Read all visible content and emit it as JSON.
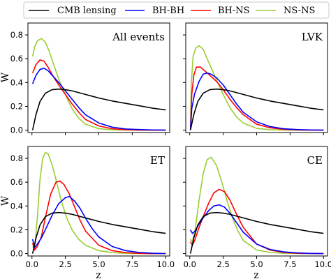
{
  "legend": {
    "entries": [
      {
        "name": "CMB lensing",
        "color": "#000000"
      },
      {
        "name": "BH-BH",
        "color": "#0000ff"
      },
      {
        "name": "BH-NS",
        "color": "#ff0000"
      },
      {
        "name": "NS-NS",
        "color": "#9acd32"
      }
    ]
  },
  "chart_data": [
    {
      "type": "line",
      "panel": "top-left",
      "title": "All events",
      "xlabel": "",
      "ylabel": "W",
      "xlim": [
        -0.3,
        10.3
      ],
      "ylim": [
        -0.02,
        0.9
      ],
      "xticks": [
        0.0,
        2.5,
        5.0,
        7.5,
        10.0
      ],
      "yticks": [
        0.0,
        0.2,
        0.4,
        0.6,
        0.8
      ],
      "show_xtick_labels": false,
      "show_yticks": true,
      "series": [
        {
          "name": "CMB lensing",
          "color": "#000000",
          "x": [
            0.05,
            0.3,
            0.6,
            1.0,
            1.5,
            2.0,
            2.5,
            3.0,
            4.0,
            5.0,
            6.0,
            7.0,
            8.0,
            9.0,
            10.0
          ],
          "y": [
            0.0,
            0.13,
            0.24,
            0.31,
            0.34,
            0.345,
            0.34,
            0.33,
            0.3,
            0.27,
            0.245,
            0.225,
            0.205,
            0.185,
            0.17
          ]
        },
        {
          "name": "BH-BH",
          "color": "#0000ff",
          "x": [
            0.05,
            0.3,
            0.6,
            0.9,
            1.2,
            1.6,
            2.0,
            2.5,
            3.0,
            3.5,
            4.0,
            5.0,
            6.0,
            7.0,
            8.0,
            9.0,
            10.0
          ],
          "y": [
            0.39,
            0.46,
            0.51,
            0.52,
            0.5,
            0.45,
            0.4,
            0.33,
            0.26,
            0.19,
            0.13,
            0.06,
            0.025,
            0.01,
            0.005,
            0.002,
            0.0
          ]
        },
        {
          "name": "BH-NS",
          "color": "#ff0000",
          "x": [
            0.05,
            0.3,
            0.6,
            0.9,
            1.2,
            1.6,
            2.0,
            2.5,
            3.0,
            3.5,
            4.0,
            5.0,
            6.0,
            7.0,
            8.0,
            9.0,
            10.0
          ],
          "y": [
            0.48,
            0.55,
            0.59,
            0.58,
            0.53,
            0.45,
            0.38,
            0.3,
            0.22,
            0.15,
            0.09,
            0.035,
            0.012,
            0.004,
            0.001,
            0.0,
            0.0
          ]
        },
        {
          "name": "NS-NS",
          "color": "#9acd32",
          "x": [
            0.05,
            0.2,
            0.4,
            0.7,
            1.0,
            1.3,
            1.6,
            2.0,
            2.5,
            3.0,
            3.5,
            4.0,
            5.0,
            6.0,
            7.0,
            8.0,
            9.0,
            10.0
          ],
          "y": [
            0.62,
            0.7,
            0.75,
            0.77,
            0.74,
            0.66,
            0.56,
            0.43,
            0.3,
            0.18,
            0.1,
            0.05,
            0.012,
            0.003,
            0.001,
            0.0,
            0.0,
            0.0
          ]
        }
      ]
    },
    {
      "type": "line",
      "panel": "top-right",
      "title": "LVK",
      "xlabel": "",
      "ylabel": "",
      "xlim": [
        -0.3,
        10.3
      ],
      "ylim": [
        -0.02,
        0.9
      ],
      "xticks": [
        0.0,
        2.5,
        5.0,
        7.5,
        10.0
      ],
      "yticks": [
        0.0,
        0.2,
        0.4,
        0.6,
        0.8
      ],
      "show_xtick_labels": false,
      "show_yticks": false,
      "series": [
        {
          "name": "CMB lensing",
          "color": "#000000",
          "x": [
            0.05,
            0.3,
            0.6,
            1.0,
            1.5,
            2.0,
            2.5,
            3.0,
            4.0,
            5.0,
            6.0,
            7.0,
            8.0,
            9.0,
            10.0
          ],
          "y": [
            0.0,
            0.13,
            0.24,
            0.31,
            0.34,
            0.345,
            0.34,
            0.33,
            0.3,
            0.27,
            0.245,
            0.225,
            0.205,
            0.185,
            0.17
          ]
        },
        {
          "name": "BH-BH",
          "color": "#0000ff",
          "x": [
            0.05,
            0.15,
            0.35,
            0.7,
            1.0,
            1.3,
            1.6,
            2.0,
            2.5,
            3.0,
            3.5,
            4.0,
            5.0,
            6.0,
            7.0,
            8.0,
            9.0,
            10.0
          ],
          "y": [
            0.0,
            0.18,
            0.3,
            0.41,
            0.47,
            0.48,
            0.47,
            0.44,
            0.38,
            0.3,
            0.22,
            0.15,
            0.07,
            0.03,
            0.012,
            0.005,
            0.002,
            0.0
          ]
        },
        {
          "name": "BH-NS",
          "color": "#ff0000",
          "x": [
            0.05,
            0.15,
            0.3,
            0.5,
            0.8,
            1.1,
            1.5,
            2.0,
            2.5,
            3.0,
            3.5,
            4.0,
            5.0,
            6.0,
            7.0,
            8.0,
            9.0,
            10.0
          ],
          "y": [
            0.0,
            0.3,
            0.46,
            0.53,
            0.53,
            0.5,
            0.46,
            0.41,
            0.34,
            0.26,
            0.19,
            0.13,
            0.05,
            0.02,
            0.007,
            0.002,
            0.0,
            0.0
          ]
        },
        {
          "name": "NS-NS",
          "color": "#9acd32",
          "x": [
            0.05,
            0.12,
            0.25,
            0.45,
            0.7,
            1.0,
            1.3,
            1.7,
            2.0,
            2.5,
            3.0,
            3.5,
            4.0,
            5.0,
            6.0,
            7.0,
            8.0,
            9.0,
            10.0
          ],
          "y": [
            0.0,
            0.4,
            0.62,
            0.69,
            0.71,
            0.68,
            0.6,
            0.5,
            0.42,
            0.3,
            0.19,
            0.11,
            0.06,
            0.015,
            0.004,
            0.001,
            0.0,
            0.0,
            0.0
          ]
        }
      ]
    },
    {
      "type": "line",
      "panel": "bottom-left",
      "title": "ET",
      "xlabel": "z",
      "ylabel": "W",
      "xlim": [
        -0.3,
        10.3
      ],
      "ylim": [
        -0.02,
        0.9
      ],
      "xticks": [
        0.0,
        2.5,
        5.0,
        7.5,
        10.0
      ],
      "yticks": [
        0.0,
        0.2,
        0.4,
        0.6,
        0.8
      ],
      "show_xtick_labels": true,
      "show_yticks": true,
      "series": [
        {
          "name": "CMB lensing",
          "color": "#000000",
          "x": [
            0.05,
            0.3,
            0.6,
            1.0,
            1.5,
            2.0,
            2.5,
            3.0,
            4.0,
            5.0,
            6.0,
            7.0,
            8.0,
            9.0,
            10.0
          ],
          "y": [
            0.0,
            0.13,
            0.24,
            0.31,
            0.34,
            0.345,
            0.34,
            0.33,
            0.3,
            0.27,
            0.245,
            0.225,
            0.205,
            0.185,
            0.17
          ]
        },
        {
          "name": "BH-BH",
          "color": "#0000ff",
          "x": [
            0.05,
            0.2,
            0.4,
            0.7,
            1.0,
            1.5,
            2.0,
            2.5,
            2.8,
            3.2,
            3.6,
            4.0,
            4.5,
            5.0,
            6.0,
            7.0,
            8.0,
            9.0,
            10.0
          ],
          "y": [
            0.12,
            0.05,
            0.08,
            0.13,
            0.2,
            0.32,
            0.42,
            0.47,
            0.48,
            0.44,
            0.38,
            0.3,
            0.21,
            0.14,
            0.06,
            0.025,
            0.01,
            0.003,
            0.0
          ]
        },
        {
          "name": "BH-NS",
          "color": "#ff0000",
          "x": [
            0.05,
            0.2,
            0.4,
            0.7,
            1.0,
            1.4,
            1.8,
            2.1,
            2.4,
            2.8,
            3.2,
            3.6,
            4.0,
            5.0,
            6.0,
            7.0,
            8.0,
            9.0,
            10.0
          ],
          "y": [
            0.09,
            0.03,
            0.06,
            0.14,
            0.3,
            0.5,
            0.6,
            0.61,
            0.58,
            0.5,
            0.39,
            0.28,
            0.19,
            0.07,
            0.025,
            0.008,
            0.002,
            0.0,
            0.0
          ]
        },
        {
          "name": "NS-NS",
          "color": "#9acd32",
          "x": [
            0.05,
            0.2,
            0.4,
            0.6,
            0.8,
            1.0,
            1.2,
            1.5,
            1.8,
            2.2,
            2.6,
            3.0,
            3.5,
            4.0,
            5.0,
            6.0,
            7.0,
            8.0,
            9.0,
            10.0
          ],
          "y": [
            0.06,
            0.04,
            0.3,
            0.62,
            0.8,
            0.85,
            0.84,
            0.75,
            0.62,
            0.44,
            0.3,
            0.2,
            0.12,
            0.07,
            0.025,
            0.008,
            0.002,
            0.0,
            0.0,
            0.0
          ]
        }
      ]
    },
    {
      "type": "line",
      "panel": "bottom-right",
      "title": "CE",
      "xlabel": "z",
      "ylabel": "",
      "xlim": [
        -0.3,
        10.3
      ],
      "ylim": [
        -0.02,
        0.9
      ],
      "xticks": [
        0.0,
        2.5,
        5.0,
        7.5,
        10.0
      ],
      "yticks": [
        0.0,
        0.2,
        0.4,
        0.6,
        0.8
      ],
      "show_xtick_labels": true,
      "show_yticks": false,
      "series": [
        {
          "name": "CMB lensing",
          "color": "#000000",
          "x": [
            0.05,
            0.3,
            0.6,
            1.0,
            1.5,
            2.0,
            2.5,
            3.0,
            4.0,
            5.0,
            6.0,
            7.0,
            8.0,
            9.0,
            10.0
          ],
          "y": [
            0.0,
            0.13,
            0.24,
            0.31,
            0.34,
            0.345,
            0.34,
            0.33,
            0.3,
            0.27,
            0.245,
            0.225,
            0.205,
            0.185,
            0.17
          ]
        },
        {
          "name": "BH-BH",
          "color": "#0000ff",
          "x": [
            0.05,
            0.2,
            0.4,
            0.7,
            1.0,
            1.4,
            1.8,
            2.2,
            2.6,
            3.0,
            3.5,
            4.0,
            5.0,
            6.0,
            7.0,
            8.0,
            9.0,
            10.0
          ],
          "y": [
            0.2,
            0.17,
            0.19,
            0.25,
            0.3,
            0.36,
            0.4,
            0.41,
            0.39,
            0.34,
            0.26,
            0.18,
            0.08,
            0.035,
            0.015,
            0.006,
            0.002,
            0.0
          ]
        },
        {
          "name": "BH-NS",
          "color": "#ff0000",
          "x": [
            0.05,
            0.2,
            0.4,
            0.7,
            1.0,
            1.4,
            1.8,
            2.2,
            2.6,
            3.0,
            3.5,
            4.0,
            5.0,
            6.0,
            7.0,
            8.0,
            9.0,
            10.0
          ],
          "y": [
            0.1,
            0.07,
            0.12,
            0.22,
            0.31,
            0.42,
            0.51,
            0.54,
            0.52,
            0.45,
            0.33,
            0.22,
            0.08,
            0.03,
            0.01,
            0.003,
            0.001,
            0.0
          ]
        },
        {
          "name": "NS-NS",
          "color": "#9acd32",
          "x": [
            0.05,
            0.2,
            0.4,
            0.7,
            1.0,
            1.3,
            1.6,
            2.0,
            2.4,
            2.8,
            3.2,
            3.6,
            4.0,
            5.0,
            6.0,
            7.0,
            8.0,
            9.0,
            10.0
          ],
          "y": [
            0.12,
            0.1,
            0.2,
            0.45,
            0.67,
            0.79,
            0.81,
            0.74,
            0.6,
            0.44,
            0.3,
            0.19,
            0.11,
            0.03,
            0.01,
            0.003,
            0.001,
            0.0,
            0.0
          ]
        }
      ]
    }
  ]
}
